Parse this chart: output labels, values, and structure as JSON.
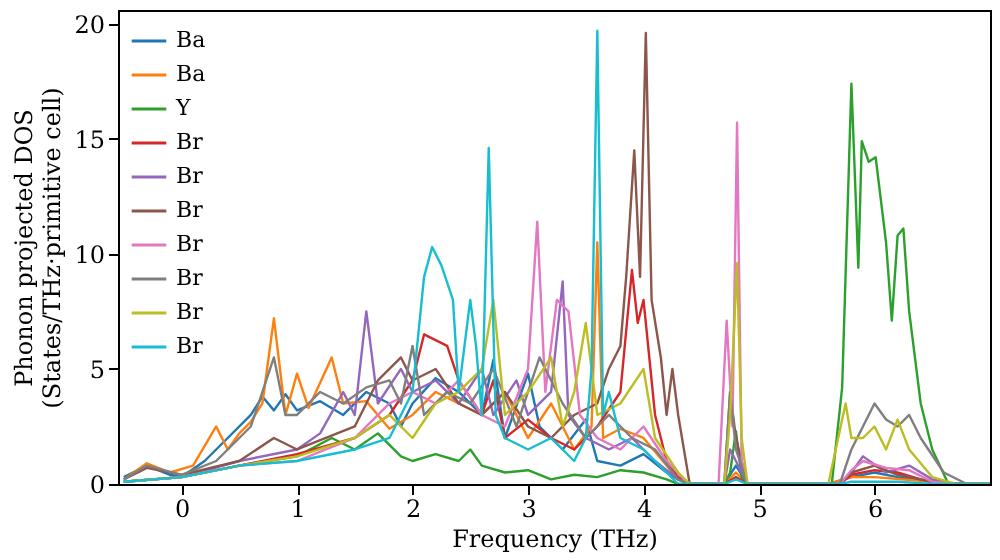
{
  "chart_data": {
    "type": "line",
    "xlabel": "Frequency (THz)",
    "ylabel": "Phonon projected DOS\n(States/THz·primitive cell)",
    "xlim": [
      -0.55,
      7.0
    ],
    "ylim": [
      0,
      20.6
    ],
    "xticks": [
      0,
      1,
      2,
      3,
      4,
      5,
      6
    ],
    "yticks": [
      0,
      5,
      10,
      15,
      20
    ],
    "legend": "top left",
    "series": [
      {
        "name": "Ba",
        "color": "#1f77b4",
        "x": [
          -0.5,
          -0.3,
          -0.1,
          0,
          0.2,
          0.4,
          0.6,
          0.7,
          0.8,
          0.9,
          1.0,
          1.2,
          1.4,
          1.6,
          1.8,
          1.9,
          2.0,
          2.2,
          2.4,
          2.6,
          2.7,
          2.8,
          3.0,
          3.1,
          3.3,
          3.5,
          3.6,
          3.8,
          4.0,
          4.2,
          4.3,
          4.4,
          4.7,
          4.8,
          4.9,
          5.6,
          5.8,
          6.0,
          6.2,
          6.5
        ],
        "values": [
          0.3,
          0.8,
          0.4,
          0.3,
          1.0,
          2.0,
          3.0,
          3.8,
          3.2,
          3.9,
          3.2,
          3.6,
          3.0,
          4.0,
          3.5,
          2.5,
          3.5,
          4.6,
          4.0,
          3.0,
          5.4,
          2.0,
          4.8,
          2.5,
          1.5,
          2.8,
          1.0,
          0.8,
          1.3,
          0.5,
          0.2,
          0,
          0,
          0.8,
          0,
          0,
          0.3,
          0.5,
          0.3,
          0.1
        ]
      },
      {
        "name": "Ba",
        "color": "#ff7f0e",
        "x": [
          -0.5,
          -0.3,
          -0.1,
          0.1,
          0.3,
          0.4,
          0.5,
          0.6,
          0.7,
          0.8,
          0.9,
          1.0,
          1.1,
          1.3,
          1.4,
          1.6,
          1.8,
          2.0,
          2.2,
          2.4,
          2.6,
          2.8,
          3.0,
          3.2,
          3.4,
          3.55,
          3.6,
          3.65,
          3.8,
          4.0,
          4.2,
          4.3,
          4.4,
          4.7,
          4.8,
          4.9,
          5.6,
          5.8,
          6.0,
          6.5,
          6.8,
          7.0
        ],
        "values": [
          0.2,
          0.9,
          0.5,
          0.8,
          2.5,
          1.5,
          2.2,
          2.7,
          3.5,
          7.2,
          3.0,
          4.8,
          3.3,
          5.5,
          3.5,
          3.6,
          2.4,
          3.0,
          4.0,
          3.5,
          3.0,
          4.0,
          2.0,
          3.5,
          1.5,
          2.5,
          10.5,
          2.0,
          2.4,
          2.0,
          0.8,
          0.2,
          0,
          0,
          0.5,
          0,
          0,
          0.3,
          0.3,
          0.1,
          0,
          0
        ]
      },
      {
        "name": "Y",
        "color": "#2ca02c",
        "x": [
          -0.5,
          0,
          0.5,
          1.0,
          1.3,
          1.5,
          1.7,
          1.9,
          2.0,
          2.2,
          2.4,
          2.5,
          2.6,
          2.8,
          3.0,
          3.2,
          3.4,
          3.6,
          3.8,
          4.0,
          4.2,
          4.3,
          4.7,
          4.75,
          4.8,
          4.85,
          4.9,
          5.63,
          5.72,
          5.8,
          5.86,
          5.89,
          5.95,
          6.01,
          6.1,
          6.15,
          6.2,
          6.25,
          6.3,
          6.4,
          6.5,
          6.64,
          7.0
        ],
        "values": [
          0.1,
          0.3,
          0.8,
          1.2,
          2.0,
          1.5,
          2.2,
          1.2,
          1.0,
          1.3,
          1.0,
          1.5,
          0.8,
          0.5,
          0.6,
          0.2,
          0.4,
          0.3,
          0.6,
          0.5,
          0.2,
          0,
          0,
          0.5,
          2.3,
          0.3,
          0,
          0,
          4.2,
          17.4,
          9.4,
          14.9,
          14.0,
          14.2,
          10.5,
          7.1,
          10.8,
          11.1,
          7.5,
          3.5,
          1.5,
          0,
          0
        ]
      },
      {
        "name": "Br",
        "color": "#d62728",
        "x": [
          -0.5,
          0,
          0.5,
          1.0,
          1.5,
          1.8,
          2.0,
          2.1,
          2.3,
          2.4,
          2.6,
          2.7,
          2.8,
          3.0,
          3.2,
          3.4,
          3.6,
          3.8,
          3.9,
          3.95,
          4.0,
          4.1,
          4.2,
          4.3,
          4.4,
          4.7,
          4.8,
          4.9,
          5.7,
          5.8,
          6.0,
          6.2,
          6.4,
          6.6,
          7.0
        ],
        "values": [
          0.1,
          0.3,
          0.8,
          1.3,
          2.0,
          3.0,
          4.5,
          6.5,
          6.0,
          4.5,
          3.0,
          4.5,
          2.0,
          2.8,
          2.0,
          1.5,
          2.5,
          4.0,
          9.3,
          7.0,
          8.0,
          3.0,
          1.0,
          0.3,
          0,
          0,
          0.3,
          0,
          0,
          0.4,
          0.6,
          0.5,
          0.2,
          0,
          0
        ]
      },
      {
        "name": "Br",
        "color": "#9467bd",
        "x": [
          -0.5,
          0,
          0.5,
          1.0,
          1.2,
          1.4,
          1.5,
          1.6,
          1.7,
          1.9,
          2.0,
          2.2,
          2.4,
          2.6,
          2.7,
          2.9,
          3.0,
          3.2,
          3.3,
          3.35,
          3.5,
          3.7,
          3.9,
          4.1,
          4.3,
          4.4,
          4.7,
          4.75,
          4.8,
          4.9,
          5.7,
          5.8,
          5.9,
          6.1,
          6.3,
          6.5,
          6.7,
          7.0
        ],
        "values": [
          0.1,
          0.3,
          1.0,
          1.5,
          2.2,
          4.0,
          3.0,
          7.5,
          3.5,
          5.0,
          4.0,
          4.5,
          3.5,
          5.0,
          3.0,
          4.5,
          3.0,
          4.0,
          8.8,
          3.0,
          2.0,
          1.5,
          2.0,
          1.0,
          0.2,
          0,
          0,
          1.5,
          1.0,
          0,
          0,
          0.5,
          1.2,
          0.5,
          0.8,
          0.2,
          0,
          0
        ]
      },
      {
        "name": "Br",
        "color": "#8c564b",
        "x": [
          -0.5,
          -0.3,
          0,
          0.5,
          0.8,
          1.0,
          1.5,
          1.7,
          1.9,
          2.0,
          2.2,
          2.4,
          2.6,
          2.8,
          3.0,
          3.2,
          3.4,
          3.6,
          3.7,
          3.8,
          3.85,
          3.92,
          3.97,
          4.02,
          4.07,
          4.15,
          4.2,
          4.25,
          4.3,
          4.4,
          4.7,
          4.75,
          4.8,
          4.9,
          5.7,
          5.8,
          6.0,
          6.2,
          6.5,
          6.7,
          7.0
        ],
        "values": [
          0.2,
          0.7,
          0.4,
          1.0,
          2.0,
          1.5,
          2.5,
          4.5,
          5.5,
          4.5,
          5.0,
          3.5,
          3.0,
          4.0,
          2.5,
          2.0,
          3.0,
          3.5,
          5.0,
          6.0,
          9.0,
          14.5,
          9.0,
          19.6,
          8.0,
          5.5,
          3.0,
          5.0,
          3.0,
          0,
          0,
          4.0,
          2.0,
          0,
          0,
          0.5,
          0.8,
          0.4,
          0.1,
          0,
          0
        ]
      },
      {
        "name": "Br",
        "color": "#e377c2",
        "x": [
          -0.5,
          0,
          0.5,
          1.0,
          1.5,
          1.8,
          2.0,
          2.2,
          2.4,
          2.6,
          2.8,
          3.0,
          3.08,
          3.15,
          3.25,
          3.35,
          3.45,
          3.6,
          3.8,
          4.0,
          4.2,
          4.35,
          4.4,
          4.65,
          4.72,
          4.77,
          4.81,
          4.85,
          4.9,
          5.7,
          5.8,
          5.9,
          6.1,
          6.3,
          6.5,
          6.7,
          7.0
        ],
        "values": [
          0.1,
          0.3,
          0.8,
          1.0,
          2.0,
          3.5,
          4.0,
          3.5,
          4.5,
          3.0,
          2.5,
          5.0,
          11.4,
          4.0,
          8.0,
          7.5,
          3.0,
          2.0,
          1.5,
          2.5,
          1.0,
          0.2,
          0,
          0,
          7.1,
          2.5,
          15.7,
          1.0,
          0,
          0,
          0.6,
          1.0,
          0.7,
          0.6,
          0.1,
          0,
          0
        ]
      },
      {
        "name": "Br",
        "color": "#7f7f7f",
        "x": [
          -0.5,
          -0.3,
          0,
          0.3,
          0.6,
          0.8,
          0.9,
          1.0,
          1.2,
          1.4,
          1.6,
          1.8,
          1.9,
          2.0,
          2.1,
          2.3,
          2.5,
          2.7,
          2.9,
          3.1,
          3.3,
          3.5,
          3.7,
          3.9,
          4.1,
          4.3,
          4.4,
          4.7,
          4.75,
          4.8,
          4.9,
          5.7,
          5.8,
          5.9,
          6.0,
          6.1,
          6.2,
          6.3,
          6.4,
          6.6,
          6.8,
          7.0
        ],
        "values": [
          0.2,
          0.8,
          0.4,
          1.0,
          2.5,
          5.5,
          3.0,
          3.0,
          4.0,
          3.5,
          4.2,
          4.5,
          3.5,
          6.0,
          3.0,
          4.0,
          3.5,
          5.0,
          2.5,
          5.5,
          3.5,
          2.0,
          3.0,
          2.0,
          1.5,
          0.2,
          0,
          0,
          4.0,
          1.5,
          0,
          0,
          1.5,
          2.5,
          3.5,
          2.8,
          2.5,
          3.0,
          2.0,
          0.5,
          0,
          0
        ]
      },
      {
        "name": "Br",
        "color": "#bcbd22",
        "x": [
          -0.5,
          0,
          0.5,
          1.0,
          1.5,
          1.8,
          2.0,
          2.2,
          2.4,
          2.6,
          2.7,
          2.8,
          3.0,
          3.2,
          3.3,
          3.4,
          3.5,
          3.6,
          3.8,
          4.0,
          4.1,
          4.3,
          4.4,
          4.7,
          4.75,
          4.81,
          4.85,
          4.9,
          5.6,
          5.75,
          5.8,
          5.9,
          6.0,
          6.1,
          6.2,
          6.3,
          6.5,
          6.7,
          7.0
        ],
        "values": [
          0.1,
          0.3,
          0.8,
          1.2,
          2.0,
          3.0,
          2.0,
          3.5,
          4.0,
          5.0,
          8.0,
          3.0,
          4.0,
          5.5,
          2.5,
          4.0,
          7.0,
          3.0,
          3.5,
          5.0,
          2.0,
          0.5,
          0,
          0,
          3.0,
          9.6,
          2.0,
          0,
          0,
          3.5,
          2.0,
          2.0,
          2.5,
          1.5,
          2.8,
          1.5,
          0.3,
          0,
          0
        ]
      },
      {
        "name": "Br",
        "color": "#17becf",
        "x": [
          -0.5,
          0,
          0.5,
          1.0,
          1.5,
          1.8,
          2.0,
          2.1,
          2.17,
          2.25,
          2.35,
          2.4,
          2.5,
          2.55,
          2.6,
          2.66,
          2.72,
          2.8,
          3.0,
          3.2,
          3.4,
          3.5,
          3.55,
          3.6,
          3.65,
          3.7,
          3.8,
          4.0,
          4.2,
          4.3,
          4.7,
          4.8,
          4.9,
          5.7,
          5.8,
          6.2,
          6.5,
          7.0
        ],
        "values": [
          0.1,
          0.3,
          0.8,
          1.0,
          1.5,
          2.0,
          4.0,
          9.0,
          10.3,
          9.5,
          8.0,
          4.0,
          8.0,
          6.0,
          3.0,
          14.6,
          3.0,
          2.0,
          1.5,
          2.0,
          1.0,
          2.0,
          5.0,
          19.7,
          3.0,
          4.0,
          2.0,
          1.5,
          0.5,
          0,
          0,
          0.2,
          0,
          0,
          0.1,
          0.1,
          0,
          0
        ]
      }
    ]
  }
}
